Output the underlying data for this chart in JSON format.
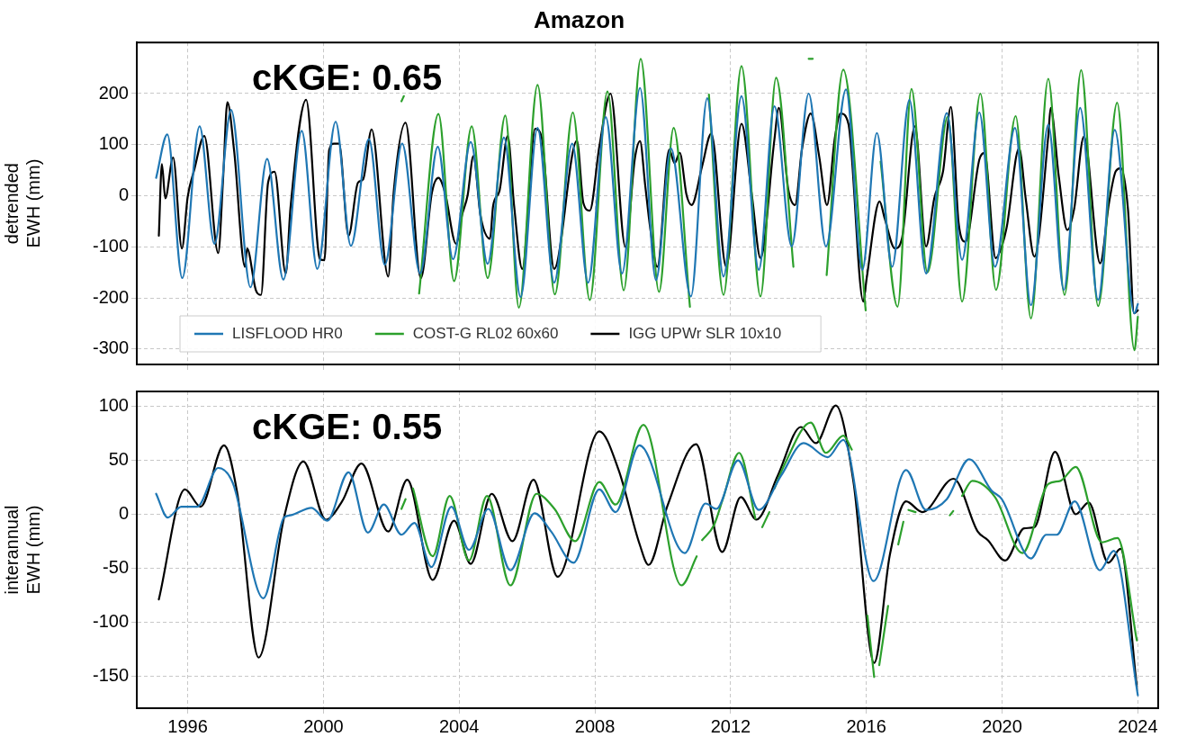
{
  "chart_data": [
    {
      "type": "line",
      "title": "Amazon",
      "ylabel": "detrended\nEWH (mm)",
      "annotations": [
        "cKGE: 0.65"
      ],
      "xlim": [
        1994.5,
        2024.6
      ],
      "xticks": [
        1996,
        2000,
        2004,
        2008,
        2012,
        2016,
        2020,
        2024
      ],
      "ylim": [
        -330,
        300
      ],
      "yticks": [
        -300,
        -200,
        -100,
        0,
        100,
        200
      ],
      "grid": true,
      "legend": "bottom left",
      "tick_labels": "y",
      "series": [
        {
          "name": "LISFLOOD HR0",
          "color": "#1f77b4",
          "x": [
            1995.07,
            1995.4,
            1995.84,
            1996.35,
            1996.79,
            1997.28,
            1997.85,
            1998.34,
            1998.82,
            1999.36,
            1999.82,
            2000.36,
            2000.81,
            2001.34,
            2001.81,
            2002.32,
            2002.85,
            2003.37,
            2003.82,
            2004.34,
            2004.84,
            2005.32,
            2005.81,
            2006.31,
            2006.8,
            2007.33,
            2007.8,
            2008.32,
            2008.8,
            2009.33,
            2009.8,
            2010.24,
            2010.83,
            2011.31,
            2011.79,
            2012.32,
            2012.83,
            2013.29,
            2013.8,
            2014.3,
            2014.81,
            2015.4,
            2015.88,
            2016.31,
            2016.76,
            2017.27,
            2017.76,
            2018.37,
            2018.82,
            2019.33,
            2019.79,
            2020.38,
            2020.85,
            2021.36,
            2021.82,
            2022.3,
            2022.83,
            2023.32,
            2023.9,
            2024.0
          ],
          "values": [
            35,
            120,
            -161,
            136,
            -94,
            168,
            -179,
            72,
            -164,
            127,
            -143,
            145,
            -98,
            111,
            -135,
            102,
            -152,
            96,
            -124,
            105,
            -133,
            114,
            -198,
            133,
            -170,
            102,
            -170,
            154,
            -152,
            211,
            -165,
            93,
            -197,
            191,
            -158,
            195,
            -145,
            175,
            -99,
            200,
            -99,
            208,
            -145,
            123,
            -139,
            188,
            -152,
            162,
            -125,
            163,
            -139,
            133,
            -214,
            139,
            -184,
            172,
            -204,
            129,
            -230,
            -212
          ]
        },
        {
          "name": "COST-G RL02 60x60",
          "color": "#2ca02c",
          "x": [
            2002.3,
            2002.37,
            2002.55,
            2002.82,
            2003.39,
            2003.85,
            2004.37,
            2004.84,
            2005.36,
            2005.76,
            2006.31,
            2006.82,
            2007.35,
            2007.85,
            2008.37,
            2008.85,
            2009.35,
            2009.89,
            2010.32,
            2010.8,
            2010.95,
            2011.36,
            2011.79,
            2012.32,
            2012.88,
            2013.34,
            2013.85,
            2014.1,
            2014.3,
            2014.42,
            2014.6,
            2014.83,
            2015.32,
            2015.98,
            2016.2,
            2016.42,
            2016.92,
            2017.33,
            2017.8,
            2018.4,
            2018.82,
            2019.36,
            2019.82,
            2020.4,
            2020.85,
            2021.36,
            2021.84,
            2022.33,
            2022.83,
            2023.39,
            2023.9,
            2024.0
          ],
          "values": [
            185,
            195,
            null,
            -191,
            160,
            -167,
            136,
            -161,
            157,
            -219,
            217,
            -193,
            163,
            -204,
            204,
            -185,
            268,
            -188,
            133,
            -217,
            null,
            198,
            -194,
            254,
            -197,
            231,
            -139,
            null,
            268,
            268,
            null,
            -155,
            247,
            -224,
            null,
            67,
            -217,
            209,
            -150,
            155,
            -207,
            200,
            -184,
            156,
            -240,
            229,
            -194,
            246,
            -216,
            182,
            -302,
            -237
          ]
        },
        {
          "name": "IGG UPWr SLR 10x10",
          "color": "#000000",
          "x": [
            1995.15,
            1995.24,
            1995.34,
            1995.57,
            1995.83,
            1996.0,
            1996.19,
            1996.49,
            1996.9,
            1997.04,
            1997.17,
            1997.37,
            1997.69,
            1997.75,
            1998.01,
            1998.16,
            1998.37,
            1998.56,
            1998.89,
            1999.03,
            1999.49,
            1999.9,
            2000.03,
            2000.17,
            2000.31,
            2000.46,
            2000.74,
            2001.02,
            2001.17,
            2001.42,
            2001.91,
            2002.07,
            2002.42,
            2002.87,
            2003.2,
            2003.39,
            2003.58,
            2003.91,
            2004.08,
            2004.25,
            2004.42,
            2004.63,
            2004.91,
            2005.0,
            2005.19,
            2005.43,
            2005.62,
            2005.86,
            2006.24,
            2006.43,
            2006.8,
            2007.47,
            2007.66,
            2007.85,
            2008.13,
            2008.46,
            2008.9,
            2009.18,
            2009.33,
            2009.48,
            2009.63,
            2009.84,
            2010.19,
            2010.35,
            2010.5,
            2010.7,
            2010.85,
            2011.16,
            2011.43,
            2011.87,
            2012.32,
            2012.63,
            2012.88,
            2013.29,
            2013.42,
            2013.7,
            2013.9,
            2014.1,
            2014.36,
            2014.61,
            2014.84,
            2015.07,
            2015.24,
            2015.47,
            2015.91,
            2016.01,
            2016.39,
            2016.54,
            2016.84,
            2017.05,
            2017.43,
            2017.76,
            2018.0,
            2018.26,
            2018.49,
            2018.72,
            2018.92,
            2019.33,
            2019.48,
            2019.81,
            2019.99,
            2020.14,
            2020.5,
            2020.7,
            2020.95,
            2021.36,
            2021.43,
            2021.67,
            2021.92,
            2022.12,
            2022.41,
            2022.89,
            2023.15,
            2023.35,
            2023.5,
            2023.71,
            2023.89,
            2024.0
          ],
          "values": [
            -78,
            62,
            -5,
            75,
            -103,
            -2,
            50,
            117,
            -112,
            29,
            183,
            87,
            -139,
            -103,
            -185,
            -194,
            26,
            47,
            -152,
            -23,
            188,
            -124,
            -126,
            90,
            102,
            102,
            -78,
            26,
            32,
            130,
            -158,
            7,
            143,
            -161,
            7,
            35,
            7,
            -94,
            -39,
            1,
            78,
            -39,
            -84,
            -20,
            10,
            117,
            -20,
            -143,
            131,
            114,
            -143,
            108,
            -14,
            -29,
            96,
            200,
            -100,
            74,
            107,
            22,
            -63,
            -139,
            90,
            64,
            84,
            2,
            -18,
            58,
            122,
            -139,
            141,
            -1,
            -122,
            110,
            172,
            12,
            -18,
            90,
            161,
            77,
            -18,
            113,
            161,
            141,
            -207,
            -161,
            -11,
            -44,
            -103,
            -83,
            136,
            -99,
            -5,
            48,
            174,
            -54,
            -90,
            71,
            84,
            -122,
            -99,
            -60,
            93,
            -8,
            -119,
            116,
            172,
            38,
            -67,
            -27,
            116,
            -132,
            -14,
            48,
            54,
            -27,
            -230,
            -224
          ]
        }
      ]
    },
    {
      "type": "line",
      "ylabel": "interannual\nEWH (mm)",
      "annotations": [
        "cKGE: 0.55"
      ],
      "xlim": [
        1994.5,
        2024.6
      ],
      "xticks": [
        1996,
        2000,
        2004,
        2008,
        2012,
        2016,
        2020,
        2024
      ],
      "ylim": [
        -180,
        114
      ],
      "yticks": [
        -150,
        -100,
        -50,
        0,
        50,
        100
      ],
      "grid": true,
      "series": [
        {
          "color": "#1f77b4",
          "x": [
            1995.07,
            1995.41,
            1995.81,
            1996.28,
            1996.9,
            1997.33,
            1998.23,
            1998.84,
            1999.03,
            1999.65,
            2000.11,
            2000.74,
            2001.31,
            2001.78,
            2002.3,
            2002.68,
            2003.18,
            2003.77,
            2004.29,
            2004.86,
            2005.51,
            2006.22,
            2006.71,
            2007.37,
            2008.13,
            2008.61,
            2009.31,
            2010.65,
            2011.26,
            2011.58,
            2012.22,
            2012.83,
            2013.49,
            2014.15,
            2014.86,
            2015.32,
            2016.21,
            2017.17,
            2017.76,
            2018.37,
            2019.03,
            2019.69,
            2019.99,
            2020.85,
            2021.3,
            2021.61,
            2022.14,
            2022.88,
            2023.29,
            2024.0
          ],
          "values": [
            19,
            -3,
            7,
            7,
            43,
            29,
            -78,
            -3,
            -1,
            6,
            -6,
            39,
            -17,
            9,
            -19,
            -8,
            -49,
            7,
            -33,
            5,
            -52,
            1,
            -16,
            -45,
            23,
            2,
            64,
            -36,
            10,
            5,
            50,
            4,
            36,
            66,
            53,
            69,
            -62,
            41,
            4,
            14,
            51,
            22,
            14,
            -41,
            -19,
            -19,
            12,
            -52,
            -34,
            -168
          ]
        },
        {
          "color": "#2ca02c",
          "x": [
            2002.3,
            2002.42,
            2002.52,
            2002.64,
            2003.22,
            2003.72,
            2004.29,
            2004.82,
            2005.51,
            2006.28,
            2006.81,
            2007.42,
            2008.13,
            2008.61,
            2009.43,
            2010.55,
            2011.0,
            2011.08,
            2011.16,
            2011.51,
            2011.77,
            2012.25,
            2012.73,
            2012.83,
            2012.93,
            2013.14,
            2013.2,
            2013.29,
            2013.6,
            2014.36,
            2014.81,
            2015.32,
            2015.57,
            2015.8,
            2016.03,
            2016.23,
            2016.3,
            2016.38,
            2016.64,
            2016.8,
            2016.94,
            2017.09,
            2017.16,
            2017.24,
            2017.45,
            2018.0,
            2018.46,
            2018.56,
            2018.7,
            2018.82,
            2019.12,
            2019.79,
            2020.6,
            2021.36,
            2021.72,
            2022.17,
            2022.94,
            2023.4,
            2023.97
          ],
          "values": [
            5,
            14,
            null,
            24,
            -39,
            17,
            -43,
            17,
            -66,
            19,
            5,
            -25,
            30,
            9,
            83,
            -66,
            -39,
            null,
            -24,
            -10,
            14,
            57,
            -4,
            null,
            -12,
            2,
            null,
            24,
            47,
            85,
            57,
            73,
            60,
            null,
            -94,
            -151,
            null,
            -140,
            -85,
            null,
            -28,
            -7,
            null,
            4,
            2,
            null,
            -1,
            3,
            null,
            17,
            31,
            16,
            -36,
            28,
            31,
            44,
            -26,
            -22,
            -117
          ]
        },
        {
          "color": "#000000",
          "x": [
            1995.15,
            1995.92,
            1996.38,
            1997.07,
            1997.47,
            1998.09,
            1998.84,
            1999.41,
            2000.07,
            2000.55,
            2001.12,
            2001.91,
            2002.47,
            2003.22,
            2003.85,
            2004.34,
            2004.96,
            2005.57,
            2006.19,
            2006.9,
            2008.13,
            2008.7,
            2009.32,
            2009.58,
            2010.14,
            2010.98,
            2011.75,
            2012.3,
            2012.76,
            2013.39,
            2014.07,
            2014.51,
            2015.1,
            2015.62,
            2016.23,
            2016.69,
            2017.17,
            2017.65,
            2018.57,
            2019.28,
            2019.58,
            2020.09,
            2020.65,
            2020.95,
            2021.56,
            2022.17,
            2022.55,
            2023.13,
            2023.49,
            2023.97
          ],
          "values": [
            -79,
            23,
            7,
            64,
            18,
            -133,
            -3,
            49,
            -5,
            12,
            47,
            -16,
            32,
            -61,
            -6,
            -46,
            19,
            -25,
            32,
            -58,
            77,
            41,
            -28,
            -47,
            8,
            65,
            -35,
            16,
            -5,
            36,
            81,
            66,
            101,
            30,
            -138,
            -38,
            12,
            2,
            33,
            -16,
            -24,
            -43,
            -13,
            -12,
            58,
            0,
            11,
            -45,
            -32,
            -160
          ]
        }
      ]
    }
  ]
}
